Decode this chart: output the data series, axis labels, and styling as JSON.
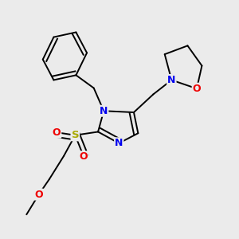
{
  "background_color": "#ebebeb",
  "colors": {
    "N": "#0000ee",
    "O": "#ee0000",
    "S": "#aaaa00",
    "bond": "#000000"
  }
}
